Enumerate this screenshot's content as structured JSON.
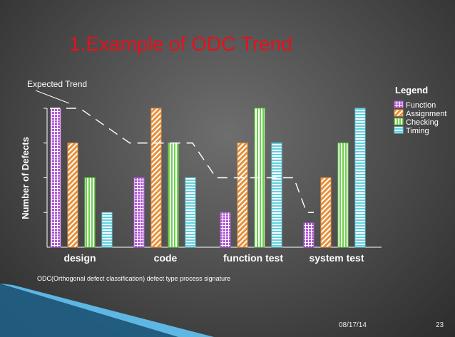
{
  "slide": {
    "title": "1.Example of ODC Trend",
    "date": "08/17/14",
    "page_number": "23"
  },
  "colors": {
    "function": "#b25bd6",
    "assignment": "#e8903a",
    "checking": "#6dcf4d",
    "timing": "#5fd0e0",
    "title": "#e8101a",
    "expected_trend": "#ffffff"
  },
  "chart_data": {
    "type": "bar",
    "categories": [
      "design",
      "code",
      "function test",
      "system test"
    ],
    "series": [
      {
        "name": "Function",
        "values": [
          4,
          2,
          1,
          0.7
        ]
      },
      {
        "name": "Assignment",
        "values": [
          3,
          4,
          3,
          2
        ]
      },
      {
        "name": "Checking",
        "values": [
          2,
          3,
          4,
          3
        ]
      },
      {
        "name": "Timing",
        "values": [
          1,
          2,
          3,
          4
        ]
      }
    ],
    "expected_trend": {
      "name": "Expected Trend",
      "values": [
        4,
        3,
        2,
        1
      ]
    },
    "ylabel": "Number of Defects",
    "xlabel": "",
    "ylim": [
      0,
      4
    ],
    "grid": false,
    "legend": {
      "title": "Legend",
      "position": "top-right"
    },
    "caption": "ODC(Orthogonal defect classification) defect type process signature",
    "patterns": [
      "grid",
      "diagonal",
      "vertical-lines",
      "horizontal-lines"
    ]
  }
}
